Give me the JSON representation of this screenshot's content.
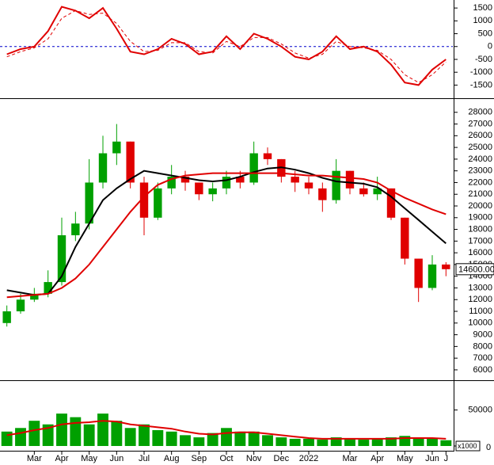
{
  "chart_data": [
    {
      "type": "line",
      "ylim": [
        -1950,
        1750
      ],
      "yticks": [
        -1500,
        -1000,
        -500,
        0,
        500,
        1000,
        1500
      ],
      "hline": 0,
      "hline_color": "#0000cc",
      "series": [
        {
          "color": "#e00000",
          "dash": false,
          "values": [
            -300,
            -100,
            0,
            600,
            1550,
            1400,
            1100,
            1500,
            700,
            -200,
            -300,
            -100,
            300,
            100,
            -300,
            -200,
            400,
            -100,
            500,
            300,
            0,
            -400,
            -500,
            -200,
            400,
            -100,
            0,
            -200,
            -700,
            -1400,
            -1500,
            -900,
            -500
          ]
        },
        {
          "color": "#e00000",
          "dash": true,
          "values": [
            -400,
            -200,
            -50,
            300,
            1100,
            1400,
            1250,
            1300,
            900,
            200,
            -200,
            -150,
            150,
            150,
            -200,
            -250,
            200,
            0,
            350,
            350,
            100,
            -250,
            -450,
            -300,
            200,
            0,
            -50,
            -150,
            -500,
            -1100,
            -1400,
            -1100,
            -600
          ]
        }
      ]
    },
    {
      "type": "candlestick",
      "ylim": [
        5250,
        29000
      ],
      "yticks": [
        6000,
        7000,
        8000,
        9000,
        10000,
        11000,
        12000,
        13000,
        14000,
        15000,
        16000,
        17000,
        18000,
        19000,
        20000,
        21000,
        22000,
        23000,
        24000,
        25000,
        26000,
        27000,
        28000
      ],
      "up_color": "#00a000",
      "down_color": "#e00000",
      "open": [
        10000,
        11000,
        12000,
        12500,
        13500,
        17500,
        18500,
        22000,
        24500,
        25500,
        22000,
        19000,
        21500,
        22500,
        22000,
        21000,
        21500,
        22500,
        22000,
        24500,
        24000,
        22500,
        22000,
        21500,
        20500,
        23000,
        21500,
        21000,
        21500,
        19000,
        15500,
        13000,
        15000
      ],
      "high": [
        11500,
        12500,
        13000,
        14500,
        19000,
        19500,
        24000,
        26000,
        27000,
        25500,
        22500,
        22000,
        23500,
        23000,
        22000,
        22000,
        23000,
        23000,
        25500,
        25000,
        24000,
        23000,
        22500,
        22000,
        24000,
        23000,
        22000,
        22500,
        21500,
        19000,
        15500,
        15800,
        15200
      ],
      "low": [
        9700,
        10800,
        11800,
        12200,
        13200,
        17000,
        18000,
        21500,
        23500,
        21500,
        17500,
        18800,
        21000,
        21300,
        20500,
        20400,
        21000,
        21500,
        21800,
        23500,
        22000,
        21200,
        21000,
        19500,
        20200,
        21000,
        20800,
        20500,
        18800,
        15000,
        11800,
        12800,
        14000
      ],
      "close": [
        11000,
        12000,
        12500,
        13500,
        17500,
        18500,
        22000,
        24500,
        25500,
        22000,
        19000,
        21500,
        22500,
        22000,
        21000,
        21500,
        22500,
        22000,
        24500,
        24000,
        22500,
        22000,
        21500,
        20500,
        23000,
        21500,
        21000,
        21500,
        19000,
        15500,
        13000,
        15000,
        14600
      ],
      "series": [
        {
          "color": "#000000",
          "values": [
            12800,
            12600,
            12400,
            12500,
            14000,
            16500,
            18500,
            20500,
            21500,
            22300,
            23000,
            22800,
            22600,
            22400,
            22200,
            22100,
            22200,
            22500,
            22900,
            23200,
            23300,
            23100,
            22800,
            22400,
            22100,
            22000,
            21900,
            21600,
            20800,
            19800,
            18800,
            17800,
            16800
          ]
        },
        {
          "color": "#e00000",
          "values": [
            12200,
            12300,
            12400,
            12500,
            13000,
            13800,
            15000,
            16500,
            18000,
            19500,
            20800,
            21800,
            22300,
            22600,
            22700,
            22800,
            22800,
            22800,
            22800,
            22800,
            22800,
            22700,
            22600,
            22600,
            22500,
            22400,
            22300,
            22000,
            21300,
            20700,
            20200,
            19700,
            19300
          ]
        }
      ],
      "last_price": {
        "value": 14600,
        "label": "14600.00"
      }
    },
    {
      "type": "bar",
      "ylim": [
        0,
        88000
      ],
      "yticks": [
        0,
        50000
      ],
      "unit": "x1000",
      "color": "#00a000",
      "values": [
        20000,
        25000,
        35000,
        30000,
        45000,
        40000,
        30000,
        45000,
        35000,
        25000,
        30000,
        22000,
        20000,
        15000,
        12000,
        18000,
        25000,
        20000,
        20000,
        15000,
        12000,
        10000,
        10000,
        9000,
        12000,
        10000,
        9000,
        10000,
        12000,
        14000,
        12000,
        10000,
        8000
      ],
      "series": [
        {
          "color": "#e00000",
          "values": [
            15000,
            18000,
            22000,
            25000,
            30000,
            32000,
            33000,
            35000,
            34000,
            30000,
            28000,
            26000,
            24000,
            20000,
            17000,
            16000,
            18000,
            19000,
            19000,
            17000,
            15000,
            13000,
            11000,
            10000,
            10000,
            10000,
            10000,
            10000,
            10000,
            11000,
            11000,
            11000,
            10000
          ]
        }
      ],
      "categories": [
        null,
        null,
        "Mar",
        null,
        "Apr",
        null,
        "May",
        null,
        "Jun",
        null,
        "Jul",
        null,
        "Aug",
        null,
        "Sep",
        null,
        "Oct",
        null,
        "Nov",
        null,
        "Dec",
        null,
        "2022",
        null,
        null,
        "Mar",
        null,
        "Apr",
        null,
        "May",
        null,
        "Jun",
        "J"
      ]
    }
  ]
}
